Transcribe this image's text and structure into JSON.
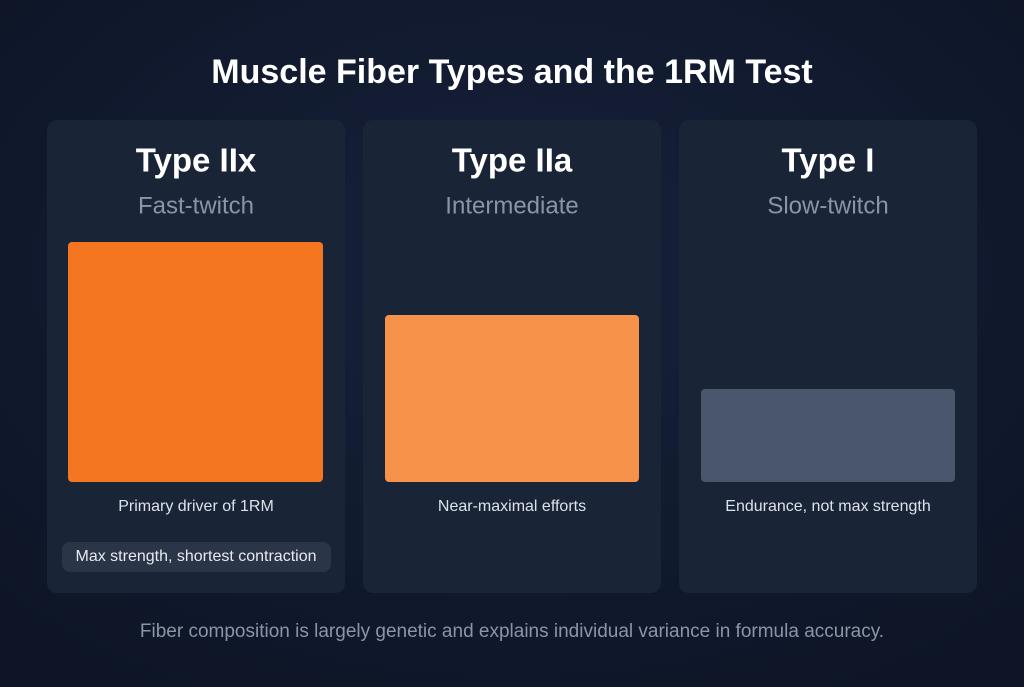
{
  "header": {
    "title": "Muscle Fiber Types and the 1RM Test"
  },
  "cards": [
    {
      "title": "Type IIx",
      "subtitle": "Fast-twitch",
      "caption": "Primary driver of 1RM",
      "tag": "Max strength, shortest contraction"
    },
    {
      "title": "Type IIa",
      "subtitle": "Intermediate",
      "caption": "Near-maximal efforts"
    },
    {
      "title": "Type I",
      "subtitle": "Slow-twitch",
      "caption": "Endurance, not max strength"
    }
  ],
  "footer": {
    "note": "Fiber composition is largely genetic and explains individual variance in formula accuracy."
  }
}
